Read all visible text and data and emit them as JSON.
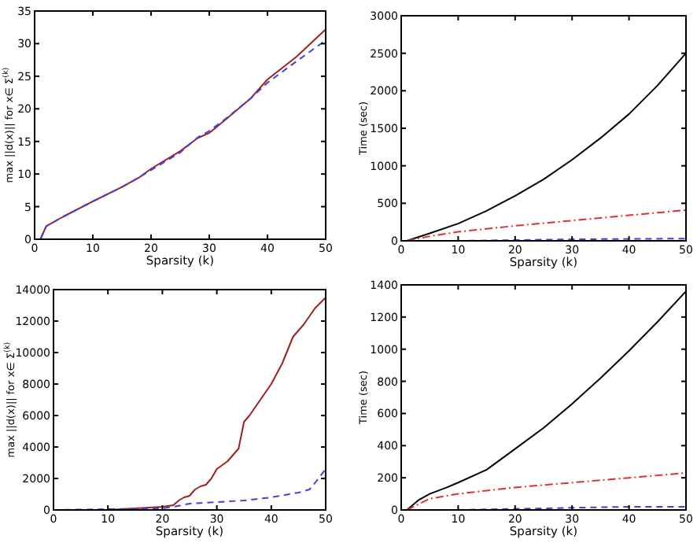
{
  "chart_data": [
    {
      "type": "line",
      "xlabel": "Sparsity (k)",
      "ylabel": "max ||d(x)|| for  x∈ Σ$^{(k)}$",
      "xlim": [
        0,
        50
      ],
      "xticks": [
        0,
        10,
        20,
        30,
        40,
        50
      ],
      "ylim": [
        0,
        35
      ],
      "yticks": [
        0,
        5,
        10,
        15,
        20,
        25,
        30,
        35
      ],
      "grid": false,
      "series": [
        {
          "color": "#a02020",
          "line_style": "solid",
          "x": [
            1,
            2,
            5,
            10,
            15,
            18,
            20,
            25,
            28,
            30,
            33,
            37,
            40,
            45,
            50
          ],
          "values": [
            0,
            2,
            3.5,
            5.8,
            8,
            9.5,
            10.8,
            13.5,
            15.5,
            16.3,
            18.5,
            21.5,
            24.5,
            28,
            32.2
          ]
        },
        {
          "color": "#4040e0",
          "line_style": "dashed",
          "x": [
            1,
            2,
            5,
            10,
            15,
            18,
            20,
            25,
            28,
            30,
            33,
            37,
            40,
            45,
            50
          ],
          "values": [
            0,
            2,
            3.5,
            5.8,
            8,
            9.5,
            10.6,
            13.3,
            15.6,
            16.6,
            18.6,
            21.5,
            24,
            27.3,
            30.5
          ]
        }
      ]
    },
    {
      "type": "line",
      "xlabel": "Sparsity (k)",
      "ylabel": "Time (sec)",
      "xlim": [
        0,
        50
      ],
      "xticks": [
        0,
        10,
        20,
        30,
        40,
        50
      ],
      "ylim": [
        0,
        3000
      ],
      "yticks": [
        0,
        500,
        1000,
        1500,
        2000,
        2500,
        3000
      ],
      "grid": false,
      "series": [
        {
          "color": "#000000",
          "line_style": "solid",
          "x": [
            1,
            5,
            10,
            15,
            20,
            25,
            30,
            35,
            40,
            45,
            50
          ],
          "values": [
            0,
            100,
            230,
            400,
            600,
            820,
            1080,
            1370,
            1690,
            2070,
            2500
          ]
        },
        {
          "color": "#e03030",
          "line_style": "dashdot",
          "x": [
            1,
            5,
            10,
            20,
            30,
            40,
            50
          ],
          "values": [
            0,
            60,
            120,
            200,
            270,
            340,
            410
          ]
        },
        {
          "color": "#4040e0",
          "line_style": "dashed",
          "x": [
            10,
            30,
            50
          ],
          "values": [
            0,
            20,
            30
          ]
        }
      ]
    },
    {
      "type": "line",
      "xlabel": "Sparsity (k)",
      "ylabel": "max ||d(x)|| for  x∈ Σ$^{(k)}$",
      "xlim": [
        0,
        50
      ],
      "xticks": [
        0,
        10,
        20,
        30,
        40,
        50
      ],
      "ylim": [
        0,
        14000
      ],
      "yticks": [
        0,
        2000,
        4000,
        6000,
        8000,
        10000,
        12000,
        14000
      ],
      "grid": false,
      "series": [
        {
          "color": "#a02020",
          "line_style": "solid",
          "x": [
            0,
            10,
            15,
            20,
            22,
            23,
            24,
            25,
            26,
            27,
            28,
            29,
            30,
            32,
            34,
            35,
            36,
            38,
            40,
            42,
            44,
            46,
            48,
            50
          ],
          "values": [
            0,
            0,
            100,
            200,
            300,
            600,
            800,
            900,
            1300,
            1500,
            1600,
            2000,
            2600,
            3100,
            3900,
            5600,
            6000,
            7000,
            8000,
            9300,
            11000,
            11800,
            12800,
            13500
          ]
        },
        {
          "color": "#4040e0",
          "line_style": "dashed",
          "x": [
            0,
            20,
            22,
            25,
            30,
            35,
            40,
            45,
            47,
            48,
            50
          ],
          "values": [
            0,
            100,
            200,
            400,
            500,
            600,
            800,
            1100,
            1300,
            1700,
            2600
          ]
        }
      ]
    },
    {
      "type": "line",
      "xlabel": "Sparsity (k)",
      "ylabel": "Time (sec)",
      "xlim": [
        0,
        50
      ],
      "xticks": [
        0,
        10,
        20,
        30,
        40,
        50
      ],
      "ylim": [
        0,
        1400
      ],
      "yticks": [
        0,
        200,
        400,
        600,
        800,
        1000,
        1200,
        1400
      ],
      "grid": false,
      "series": [
        {
          "color": "#000000",
          "line_style": "solid",
          "x": [
            1,
            3,
            5,
            8,
            10,
            15,
            20,
            25,
            30,
            35,
            40,
            45,
            50
          ],
          "values": [
            0,
            60,
            100,
            140,
            170,
            250,
            380,
            510,
            660,
            820,
            990,
            1170,
            1360
          ]
        },
        {
          "color": "#e03030",
          "line_style": "dashdot",
          "x": [
            1,
            5,
            10,
            20,
            30,
            40,
            50
          ],
          "values": [
            0,
            70,
            100,
            140,
            170,
            200,
            230
          ]
        },
        {
          "color": "#4040e0",
          "line_style": "dashed",
          "x": [
            10,
            40,
            50
          ],
          "values": [
            0,
            20,
            20
          ]
        }
      ]
    }
  ]
}
